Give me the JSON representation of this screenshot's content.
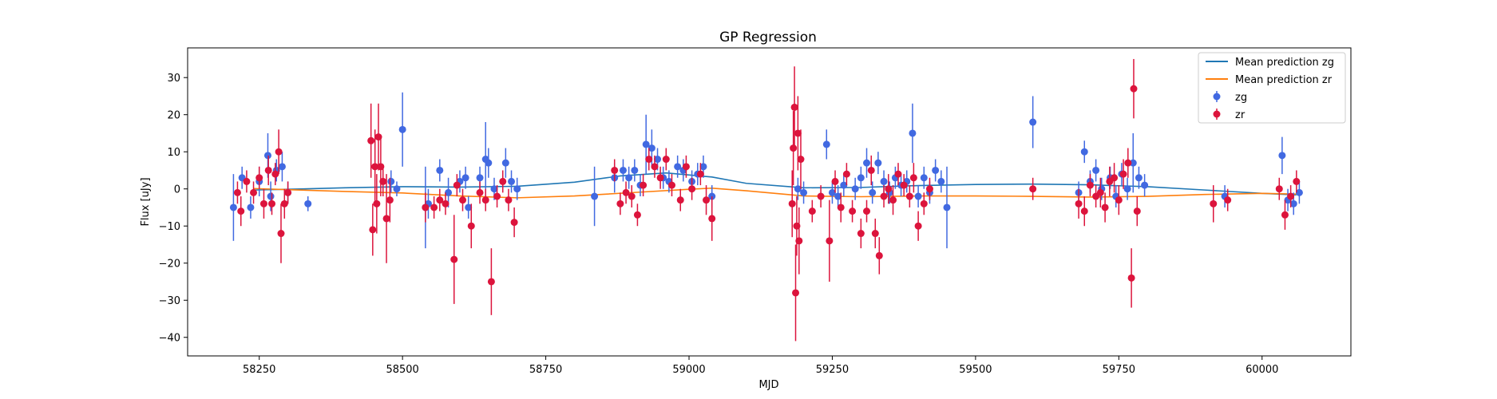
{
  "chart_data": {
    "type": "scatter",
    "title": "GP Regression",
    "xlabel": "MJD",
    "ylabel": "Flux [uJy]",
    "xlim": [
      58125,
      60155
    ],
    "ylim": [
      -45,
      38
    ],
    "xticks": [
      58250,
      58500,
      58750,
      59000,
      59250,
      59500,
      59750,
      60000
    ],
    "yticks": [
      -40,
      -30,
      -20,
      -10,
      0,
      10,
      20,
      30
    ],
    "grid": false,
    "legend_position": "top-right",
    "legend": [
      "Mean prediction zg",
      "Mean prediction zr",
      "zg",
      "zr"
    ],
    "colors": {
      "zg_line": "#1f77b4",
      "zr_line": "#ff7f0e",
      "zg_points": "#4169e1",
      "zr_points": "#dc143c"
    },
    "series": [
      {
        "name": "Mean prediction zg",
        "kind": "line",
        "x": [
          58240,
          58300,
          58400,
          58500,
          58600,
          58700,
          58800,
          58880,
          58960,
          59040,
          59100,
          59200,
          59300,
          59400,
          59500,
          59600,
          59700,
          59800,
          59900,
          60000,
          60060
        ],
        "y": [
          -0.3,
          -0.1,
          0.3,
          0.6,
          0.5,
          0.7,
          1.8,
          3.5,
          4.3,
          3.2,
          1.5,
          0.3,
          0.4,
          0.9,
          1.2,
          1.3,
          1.1,
          0.6,
          -0.3,
          -1.2,
          -1.6
        ]
      },
      {
        "name": "Mean prediction zr",
        "kind": "line",
        "x": [
          58240,
          58300,
          58400,
          58500,
          58600,
          58700,
          58800,
          58900,
          59000,
          59040,
          59100,
          59200,
          59300,
          59400,
          59500,
          59600,
          59700,
          59800,
          59900,
          60000,
          60060
        ],
        "y": [
          0.1,
          -0.2,
          -0.7,
          -1.1,
          -1.9,
          -2.4,
          -1.9,
          -1.0,
          -0.1,
          0.2,
          -0.5,
          -1.9,
          -2.1,
          -1.9,
          -1.9,
          -2.0,
          -2.2,
          -2.0,
          -1.5,
          -1.2,
          -1.4
        ]
      },
      {
        "name": "zg",
        "kind": "errorbar",
        "points": [
          [
            58205,
            -5,
            9
          ],
          [
            58220,
            3,
            3
          ],
          [
            58235,
            -5,
            3
          ],
          [
            58250,
            2,
            4
          ],
          [
            58265,
            9,
            6
          ],
          [
            58270,
            -2,
            4
          ],
          [
            58280,
            5,
            3
          ],
          [
            58290,
            6,
            4
          ],
          [
            58300,
            -1,
            3
          ],
          [
            58335,
            -4,
            2
          ],
          [
            58480,
            2,
            3
          ],
          [
            58500,
            16,
            10
          ],
          [
            58490,
            0,
            2
          ],
          [
            58540,
            -5,
            11
          ],
          [
            58545,
            -4,
            4
          ],
          [
            58565,
            5,
            3
          ],
          [
            58580,
            -1,
            4
          ],
          [
            58600,
            2,
            3
          ],
          [
            58610,
            3,
            3
          ],
          [
            58615,
            -5,
            3
          ],
          [
            58635,
            3,
            3
          ],
          [
            58645,
            8,
            10
          ],
          [
            58650,
            7,
            4
          ],
          [
            58660,
            0,
            3
          ],
          [
            58680,
            7,
            4
          ],
          [
            58690,
            2,
            3
          ],
          [
            58700,
            0,
            3
          ],
          [
            58835,
            -2,
            8
          ],
          [
            58870,
            3,
            4
          ],
          [
            58885,
            5,
            3
          ],
          [
            58895,
            3,
            3
          ],
          [
            58905,
            5,
            3
          ],
          [
            58915,
            1,
            3
          ],
          [
            58925,
            12,
            8
          ],
          [
            58935,
            11,
            5
          ],
          [
            58945,
            8,
            3
          ],
          [
            58955,
            3,
            3
          ],
          [
            58965,
            2,
            3
          ],
          [
            58980,
            6,
            3
          ],
          [
            58990,
            5,
            3
          ],
          [
            59005,
            2,
            3
          ],
          [
            59015,
            4,
            3
          ],
          [
            59025,
            6,
            3
          ],
          [
            59040,
            -2,
            3
          ],
          [
            59190,
            0,
            3
          ],
          [
            59200,
            -1,
            3
          ],
          [
            59240,
            12,
            4
          ],
          [
            59250,
            -1,
            3
          ],
          [
            59260,
            -2,
            3
          ],
          [
            59270,
            1,
            3
          ],
          [
            59290,
            0,
            3
          ],
          [
            59300,
            3,
            3
          ],
          [
            59310,
            7,
            4
          ],
          [
            59320,
            -1,
            3
          ],
          [
            59330,
            7,
            3
          ],
          [
            59340,
            2,
            3
          ],
          [
            59350,
            -1,
            3
          ],
          [
            59360,
            3,
            3
          ],
          [
            59370,
            1,
            3
          ],
          [
            59380,
            2,
            3
          ],
          [
            59390,
            15,
            8
          ],
          [
            59400,
            -2,
            3
          ],
          [
            59410,
            3,
            3
          ],
          [
            59420,
            -1,
            3
          ],
          [
            59430,
            5,
            3
          ],
          [
            59440,
            2,
            3
          ],
          [
            59450,
            -5,
            11
          ],
          [
            59600,
            18,
            7
          ],
          [
            59680,
            -1,
            3
          ],
          [
            59690,
            10,
            3
          ],
          [
            59700,
            2,
            3
          ],
          [
            59710,
            5,
            3
          ],
          [
            59720,
            0,
            3
          ],
          [
            59735,
            3,
            3
          ],
          [
            59745,
            -2,
            3
          ],
          [
            59755,
            4,
            3
          ],
          [
            59765,
            0,
            3
          ],
          [
            59775,
            7,
            8
          ],
          [
            59785,
            3,
            3
          ],
          [
            59795,
            1,
            3
          ],
          [
            59935,
            -2,
            3
          ],
          [
            60035,
            9,
            5
          ],
          [
            60045,
            -3,
            3
          ],
          [
            60055,
            -4,
            3
          ],
          [
            60065,
            -1,
            3
          ]
        ]
      },
      {
        "name": "zr",
        "kind": "errorbar",
        "points": [
          [
            58212,
            -1,
            3
          ],
          [
            58218,
            -6,
            4
          ],
          [
            58228,
            2,
            3
          ],
          [
            58240,
            -1,
            3
          ],
          [
            58250,
            3,
            3
          ],
          [
            58258,
            -4,
            4
          ],
          [
            58266,
            5,
            4
          ],
          [
            58272,
            -4,
            3
          ],
          [
            58278,
            4,
            3
          ],
          [
            58284,
            10,
            6
          ],
          [
            58288,
            -12,
            8
          ],
          [
            58294,
            -4,
            4
          ],
          [
            58300,
            -1,
            3
          ],
          [
            58445,
            13,
            10
          ],
          [
            58448,
            -11,
            7
          ],
          [
            58452,
            6,
            10
          ],
          [
            58455,
            -4,
            8
          ],
          [
            58458,
            14,
            9
          ],
          [
            58462,
            6,
            8
          ],
          [
            58466,
            2,
            4
          ],
          [
            58472,
            -8,
            12
          ],
          [
            58478,
            -3,
            6
          ],
          [
            58540,
            -5,
            4
          ],
          [
            58555,
            -5,
            3
          ],
          [
            58565,
            -3,
            3
          ],
          [
            58575,
            -4,
            3
          ],
          [
            58590,
            -19,
            12
          ],
          [
            58595,
            1,
            3
          ],
          [
            58605,
            -3,
            3
          ],
          [
            58620,
            -10,
            6
          ],
          [
            58635,
            -1,
            3
          ],
          [
            58645,
            -3,
            3
          ],
          [
            58655,
            -25,
            9
          ],
          [
            58665,
            -2,
            3
          ],
          [
            58675,
            2,
            3
          ],
          [
            58685,
            -3,
            3
          ],
          [
            58695,
            -9,
            4
          ],
          [
            58870,
            5,
            3
          ],
          [
            58880,
            -4,
            3
          ],
          [
            58890,
            -1,
            3
          ],
          [
            58900,
            -2,
            3
          ],
          [
            58910,
            -7,
            3
          ],
          [
            58920,
            1,
            3
          ],
          [
            58930,
            8,
            3
          ],
          [
            58940,
            6,
            3
          ],
          [
            58950,
            3,
            3
          ],
          [
            58960,
            8,
            3
          ],
          [
            58970,
            1,
            3
          ],
          [
            58985,
            -3,
            3
          ],
          [
            58995,
            6,
            3
          ],
          [
            59005,
            0,
            3
          ],
          [
            59020,
            4,
            3
          ],
          [
            59030,
            -3,
            4
          ],
          [
            59040,
            -8,
            6
          ],
          [
            59180,
            -4,
            9
          ],
          [
            59182,
            11,
            10
          ],
          [
            59184,
            22,
            11
          ],
          [
            59186,
            -28,
            13
          ],
          [
            59188,
            -10,
            8
          ],
          [
            59190,
            15,
            10
          ],
          [
            59192,
            -14,
            9
          ],
          [
            59195,
            8,
            8
          ],
          [
            59215,
            -6,
            3
          ],
          [
            59230,
            -2,
            3
          ],
          [
            59245,
            -14,
            11
          ],
          [
            59255,
            2,
            3
          ],
          [
            59265,
            -5,
            4
          ],
          [
            59275,
            4,
            3
          ],
          [
            59285,
            -6,
            3
          ],
          [
            59300,
            -12,
            4
          ],
          [
            59310,
            -6,
            3
          ],
          [
            59318,
            5,
            4
          ],
          [
            59325,
            -12,
            4
          ],
          [
            59332,
            -18,
            5
          ],
          [
            59340,
            -2,
            3
          ],
          [
            59348,
            0,
            4
          ],
          [
            59356,
            -3,
            4
          ],
          [
            59365,
            4,
            3
          ],
          [
            59375,
            1,
            3
          ],
          [
            59385,
            -2,
            3
          ],
          [
            59392,
            3,
            4
          ],
          [
            59400,
            -10,
            4
          ],
          [
            59410,
            -4,
            3
          ],
          [
            59420,
            0,
            3
          ],
          [
            59600,
            0,
            3
          ],
          [
            59680,
            -4,
            4
          ],
          [
            59690,
            -6,
            4
          ],
          [
            59700,
            1,
            3
          ],
          [
            59710,
            -2,
            3
          ],
          [
            59718,
            -1,
            4
          ],
          [
            59726,
            -5,
            4
          ],
          [
            59734,
            2,
            4
          ],
          [
            59742,
            3,
            4
          ],
          [
            59750,
            -3,
            4
          ],
          [
            59758,
            4,
            4
          ],
          [
            59766,
            7,
            4
          ],
          [
            59772,
            -24,
            8
          ],
          [
            59776,
            27,
            8
          ],
          [
            59782,
            -6,
            4
          ],
          [
            59915,
            -4,
            5
          ],
          [
            59940,
            -3,
            3
          ],
          [
            60030,
            0,
            3
          ],
          [
            60040,
            -7,
            4
          ],
          [
            60050,
            -2,
            3
          ],
          [
            60060,
            2,
            3
          ]
        ]
      }
    ]
  }
}
